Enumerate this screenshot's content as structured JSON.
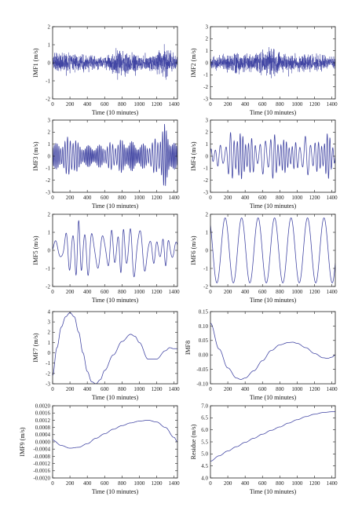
{
  "chart_data": [
    {
      "type": "line",
      "id": "imf1",
      "ylabel": "IMF1 (m/s)",
      "xlabel": "Time (10 minutes)",
      "xlim": [
        0,
        1440
      ],
      "ylim": [
        -2,
        2
      ],
      "xticks": [
        0,
        200,
        400,
        600,
        800,
        1000,
        1200,
        1400
      ],
      "yticks": [
        "-2",
        "-1",
        "0",
        "1",
        "2"
      ],
      "ytick_values": [
        -2,
        -1,
        0,
        1,
        2
      ],
      "color": "#3b3fa0",
      "signal": "noise-fast",
      "approx_amplitude_envelope": [
        [
          0,
          0.7
        ],
        [
          200,
          0.9
        ],
        [
          420,
          0.6
        ],
        [
          600,
          0.5
        ],
        [
          760,
          1.3
        ],
        [
          900,
          0.9
        ],
        [
          1000,
          0.6
        ],
        [
          1200,
          0.9
        ],
        [
          1300,
          1.4
        ],
        [
          1440,
          0.6
        ]
      ],
      "points_count": 1440
    },
    {
      "type": "line",
      "id": "imf2",
      "ylabel": "IMF2 (m/s)",
      "xlabel": "Time (10 minutes)",
      "xlim": [
        0,
        1440
      ],
      "ylim": [
        -3,
        3
      ],
      "xticks": [
        0,
        200,
        400,
        600,
        800,
        1000,
        1200,
        1400
      ],
      "yticks": [
        "-3",
        "-2",
        "-1",
        "0",
        "1",
        "2",
        "3"
      ],
      "ytick_values": [
        -3,
        -2,
        -1,
        0,
        1,
        2,
        3
      ],
      "color": "#3b3fa0",
      "signal": "noise-fast",
      "approx_amplitude_envelope": [
        [
          0,
          0.8
        ],
        [
          250,
          1.2
        ],
        [
          500,
          1.0
        ],
        [
          700,
          1.9
        ],
        [
          850,
          1.1
        ],
        [
          1000,
          1.0
        ],
        [
          1250,
          1.1
        ],
        [
          1440,
          0.7
        ]
      ],
      "points_count": 1440
    },
    {
      "type": "line",
      "id": "imf3",
      "ylabel": "IMF3 (m/s)",
      "xlabel": "Time (10 minutes)",
      "xlim": [
        0,
        1440
      ],
      "ylim": [
        -3,
        3
      ],
      "xticks": [
        0,
        200,
        400,
        600,
        800,
        1000,
        1200,
        1400
      ],
      "yticks": [
        "-3",
        "-2",
        "-1",
        "0",
        "1",
        "2",
        "3"
      ],
      "ytick_values": [
        -3,
        -2,
        -1,
        0,
        1,
        2,
        3
      ],
      "color": "#3b3fa0",
      "signal": "oscillation",
      "approx_period": 18,
      "approx_amplitude_envelope": [
        [
          0,
          1.0
        ],
        [
          150,
          1.4
        ],
        [
          220,
          2.2
        ],
        [
          300,
          1.0
        ],
        [
          450,
          0.9
        ],
        [
          600,
          1.0
        ],
        [
          780,
          1.4
        ],
        [
          900,
          1.3
        ],
        [
          1000,
          1.0
        ],
        [
          1150,
          1.2
        ],
        [
          1290,
          2.7
        ],
        [
          1350,
          1.8
        ],
        [
          1440,
          0.8
        ]
      ],
      "points_count": 1440
    },
    {
      "type": "line",
      "id": "imf4",
      "ylabel": "IMF4 (m/s)",
      "xlabel": "Time (10 minutes)",
      "xlim": [
        0,
        1440
      ],
      "ylim": [
        -3,
        3
      ],
      "xticks": [
        0,
        200,
        400,
        600,
        800,
        1000,
        1200,
        1400
      ],
      "yticks": [
        "-3",
        "-2",
        "-1",
        "0",
        "1",
        "2",
        "3"
      ],
      "ytick_values": [
        -3,
        -2,
        -1,
        0,
        1,
        2,
        3
      ],
      "color": "#3b3fa0",
      "signal": "oscillation",
      "approx_period": 36,
      "approx_amplitude_envelope": [
        [
          0,
          0.8
        ],
        [
          150,
          1.0
        ],
        [
          250,
          2.2
        ],
        [
          400,
          1.8
        ],
        [
          550,
          1.2
        ],
        [
          700,
          2.0
        ],
        [
          850,
          1.4
        ],
        [
          1000,
          1.1
        ],
        [
          1100,
          1.8
        ],
        [
          1250,
          1.2
        ],
        [
          1350,
          2.0
        ],
        [
          1440,
          1.0
        ]
      ],
      "points_count": 1440
    },
    {
      "type": "line",
      "id": "imf5",
      "ylabel": "IMF5 (m/s)",
      "xlabel": "Time (10 minutes)",
      "xlim": [
        0,
        1440
      ],
      "ylim": [
        -2,
        2
      ],
      "xticks": [
        0,
        200,
        400,
        600,
        800,
        1000,
        1200,
        1400
      ],
      "yticks": [
        "-2",
        "-1",
        "0",
        "1",
        "2"
      ],
      "ytick_values": [
        -2,
        -1,
        0,
        1,
        2
      ],
      "color": "#3b3fa0",
      "signal": "oscillation",
      "approx_period": 75,
      "approx_amplitude_envelope": [
        [
          0,
          0.5
        ],
        [
          120,
          0.7
        ],
        [
          220,
          1.6
        ],
        [
          330,
          1.7
        ],
        [
          450,
          1.3
        ],
        [
          600,
          1.1
        ],
        [
          750,
          1.2
        ],
        [
          900,
          1.5
        ],
        [
          1000,
          1.8
        ],
        [
          1100,
          1.0
        ],
        [
          1200,
          0.6
        ],
        [
          1320,
          0.9
        ],
        [
          1440,
          0.4
        ]
      ],
      "points_count": 1440
    },
    {
      "type": "line",
      "id": "imf6",
      "ylabel": "IMF6 (m/s)",
      "xlabel": "Time (10 minutes)",
      "xlim": [
        0,
        1440
      ],
      "ylim": [
        -2,
        2
      ],
      "xticks": [
        0,
        200,
        400,
        600,
        800,
        1000,
        1200,
        1400
      ],
      "yticks": [
        "-2",
        "-1",
        "0",
        "1",
        "2"
      ],
      "ytick_values": [
        -2,
        -1,
        0,
        1,
        2
      ],
      "color": "#3b3fa0",
      "signal": "oscillation",
      "approx_period": 190,
      "approx_amplitude": 1.8,
      "points_count": 1440
    },
    {
      "type": "line",
      "id": "imf7",
      "ylabel": "IMF7 (m/s)",
      "xlabel": "Time (10 minutes)",
      "xlim": [
        0,
        1440
      ],
      "ylim": [
        -3,
        4
      ],
      "xticks": [
        0,
        200,
        400,
        600,
        800,
        1000,
        1200,
        1400
      ],
      "yticks": [
        "-3",
        "-2",
        "-1",
        "0",
        "1",
        "2",
        "3",
        "4"
      ],
      "ytick_values": [
        -3,
        -2,
        -1,
        0,
        1,
        2,
        3,
        4
      ],
      "color": "#3b3fa0",
      "signal": "smooth",
      "x": [
        0,
        50,
        100,
        150,
        200,
        250,
        300,
        350,
        400,
        450,
        500,
        550,
        600,
        700,
        800,
        900,
        950,
        1000,
        1100,
        1200,
        1300,
        1350,
        1400
      ],
      "y": [
        -2.2,
        0.5,
        2.5,
        3.5,
        3.9,
        3.5,
        2.0,
        0.0,
        -1.8,
        -2.8,
        -3.0,
        -2.6,
        -1.7,
        -0.2,
        1.1,
        1.8,
        1.6,
        1.0,
        -0.6,
        -0.6,
        0.2,
        0.5,
        0.4
      ]
    },
    {
      "type": "line",
      "id": "imf8",
      "ylabel": "IMF8",
      "xlabel": "Time (10 minutes)",
      "xlim": [
        0,
        1440
      ],
      "ylim": [
        -0.1,
        0.15
      ],
      "xticks": [
        0,
        200,
        400,
        600,
        800,
        1000,
        1200,
        1400
      ],
      "yticks": [
        "-0.10",
        "-0.05",
        "0.00",
        "0.05",
        "0.10",
        "0.15"
      ],
      "ytick_values": [
        -0.1,
        -0.05,
        0,
        0.05,
        0.1,
        0.15
      ],
      "color": "#3b3fa0",
      "signal": "smooth",
      "x": [
        0,
        100,
        200,
        300,
        350,
        400,
        500,
        600,
        700,
        800,
        900,
        950,
        1000,
        1100,
        1200,
        1300,
        1350,
        1400,
        1440
      ],
      "y": [
        0.11,
        0.02,
        -0.045,
        -0.08,
        -0.085,
        -0.08,
        -0.055,
        -0.02,
        0.015,
        0.035,
        0.043,
        0.044,
        0.04,
        0.025,
        0.005,
        -0.01,
        -0.012,
        -0.008,
        0.0
      ]
    },
    {
      "type": "line",
      "id": "imf9",
      "ylabel": "IMF9 (m/s)",
      "xlabel": "Time (10 minutes)",
      "xlim": [
        0,
        1440
      ],
      "ylim": [
        -0.002,
        0.002
      ],
      "xticks": [
        0,
        200,
        400,
        600,
        800,
        1000,
        1200,
        1400
      ],
      "yticks": [
        "-0.0020",
        "-0.0016",
        "-0.0012",
        "-0.0008",
        "-0.0004",
        "0.0000",
        "0.0004",
        "0.0008",
        "0.0012",
        "0.0016",
        "0.0020"
      ],
      "ytick_values": [
        -0.002,
        -0.0016,
        -0.0012,
        -0.0008,
        -0.0004,
        0,
        0.0004,
        0.0008,
        0.0012,
        0.0016,
        0.002
      ],
      "color": "#3b3fa0",
      "signal": "smooth",
      "x": [
        0,
        100,
        200,
        300,
        400,
        500,
        600,
        700,
        800,
        900,
        1000,
        1100,
        1200,
        1300,
        1400,
        1440
      ],
      "y": [
        0.0001,
        -0.0002,
        -0.00035,
        -0.0003,
        -0.0001,
        0.0002,
        0.00045,
        0.0007,
        0.0009,
        0.00105,
        0.00115,
        0.0012,
        0.0011,
        0.0008,
        0.00025,
        0.0
      ]
    },
    {
      "type": "line",
      "id": "residue",
      "ylabel": "Residue (m/s)",
      "xlabel": "Time (10 minutes)",
      "xlim": [
        0,
        1440
      ],
      "ylim": [
        4.0,
        7.0
      ],
      "xticks": [
        0,
        200,
        400,
        600,
        800,
        1000,
        1200,
        1400
      ],
      "yticks": [
        "4.0",
        "4.5",
        "5.0",
        "5.5",
        "6.0",
        "6.5",
        "7.0"
      ],
      "ytick_values": [
        4.0,
        4.5,
        5.0,
        5.5,
        6.0,
        6.5,
        7.0
      ],
      "color": "#3b3fa0",
      "signal": "smooth",
      "x": [
        0,
        100,
        200,
        300,
        400,
        500,
        600,
        700,
        800,
        900,
        1000,
        1100,
        1200,
        1300,
        1400,
        1440
      ],
      "y": [
        4.7,
        4.92,
        5.12,
        5.3,
        5.48,
        5.65,
        5.82,
        5.98,
        6.12,
        6.28,
        6.42,
        6.55,
        6.65,
        6.72,
        6.75,
        6.75
      ]
    }
  ]
}
